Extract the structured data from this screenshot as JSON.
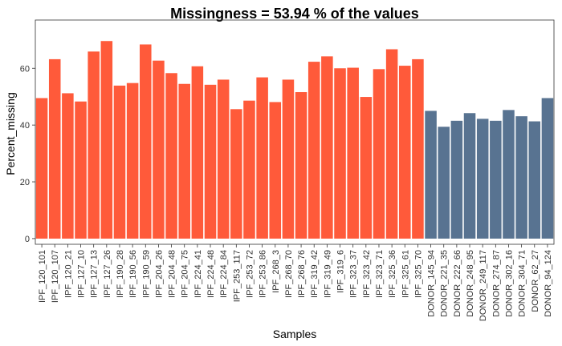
{
  "chart_data": {
    "type": "bar",
    "title": "Missingness =  53.94 % of the values",
    "xlabel": "Samples",
    "ylabel": "Percent_missing",
    "ylim": [
      -2,
      77
    ],
    "yticks": [
      0,
      20,
      40,
      60
    ],
    "grid": false,
    "legend": "none",
    "colors": {
      "IPF": "#FF5A3A",
      "DONOR": "#587391",
      "axis": "#333333"
    },
    "categories": [
      "IPF_120_101",
      "IPF_120_107",
      "IPF_120_21",
      "IPF_127_10",
      "IPF_127_13",
      "IPF_127_26",
      "IPF_190_28",
      "IPF_190_56",
      "IPF_190_59",
      "IPF_204_26",
      "IPF_204_48",
      "IPF_204_75",
      "IPF_224_41",
      "IPF_224_48",
      "IPF_224_84",
      "IPF_253_117",
      "IPF_253_72",
      "IPF_253_86",
      "IPF_268_3",
      "IPF_268_70",
      "IPF_268_76",
      "IPF_319_42",
      "IPF_319_49",
      "IPF_319_6",
      "IPF_323_37",
      "IPF_323_42",
      "IPF_323_71",
      "IPF_325_36",
      "IPF_325_61",
      "IPF_325_70",
      "DONOR_145_94",
      "DONOR_221_35",
      "DONOR_222_66",
      "DONOR_248_95",
      "DONOR_249_117",
      "DONOR_274_87",
      "DONOR_302_16",
      "DONOR_304_71",
      "DONOR_62_27",
      "DONOR_94_124"
    ],
    "groups": [
      "IPF",
      "IPF",
      "IPF",
      "IPF",
      "IPF",
      "IPF",
      "IPF",
      "IPF",
      "IPF",
      "IPF",
      "IPF",
      "IPF",
      "IPF",
      "IPF",
      "IPF",
      "IPF",
      "IPF",
      "IPF",
      "IPF",
      "IPF",
      "IPF",
      "IPF",
      "IPF",
      "IPF",
      "IPF",
      "IPF",
      "IPF",
      "IPF",
      "IPF",
      "IPF",
      "DONOR",
      "DONOR",
      "DONOR",
      "DONOR",
      "DONOR",
      "DONOR",
      "DONOR",
      "DONOR",
      "DONOR",
      "DONOR"
    ],
    "values": [
      49.5,
      63.2,
      51.2,
      48.3,
      65.9,
      69.6,
      53.9,
      54.8,
      68.4,
      62.7,
      58.3,
      54.5,
      60.7,
      54.2,
      56.0,
      45.6,
      48.6,
      56.8,
      48.1,
      56.0,
      51.6,
      62.3,
      64.2,
      60.0,
      60.2,
      49.9,
      59.7,
      66.7,
      60.9,
      63.2,
      45.0,
      39.4,
      41.5,
      44.2,
      42.2,
      41.5,
      45.3,
      43.1,
      41.3,
      49.5
    ]
  }
}
